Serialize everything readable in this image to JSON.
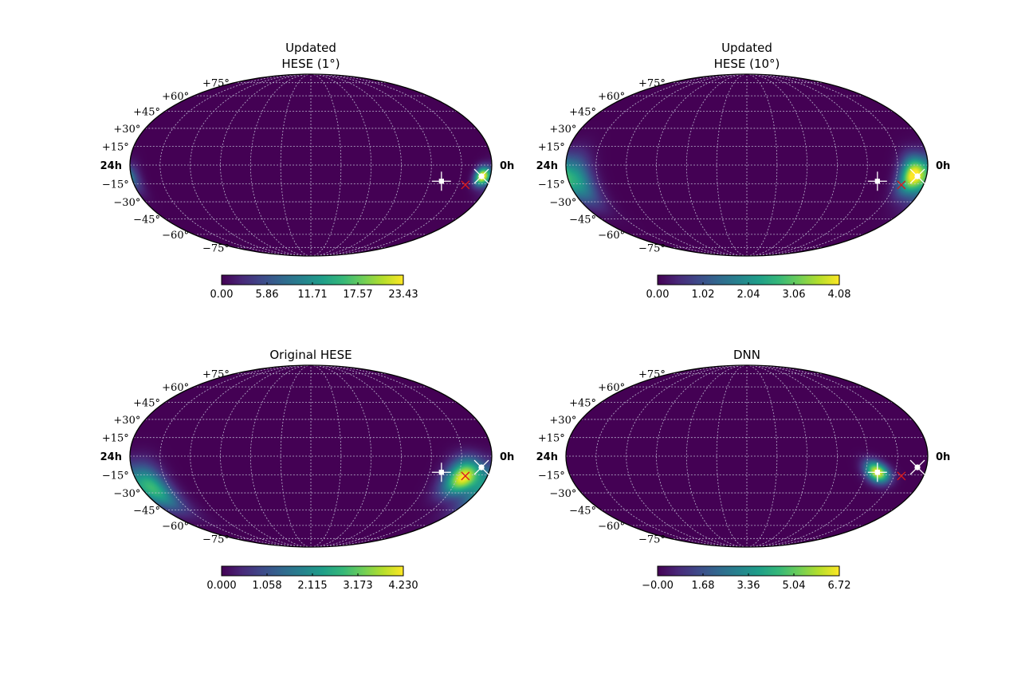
{
  "colors": {
    "background_map": "#440154",
    "grid": "#c8c8dc",
    "best_fit_marker": "#ffffff",
    "true_source_marker": "#d7191c",
    "viridis": [
      "#440154",
      "#482878",
      "#3e4989",
      "#31688e",
      "#26828e",
      "#1f9e89",
      "#35b779",
      "#6ece58",
      "#b5de2b",
      "#fde725"
    ]
  },
  "chart_data": [
    {
      "type": "heatmap",
      "projection": "mollweide",
      "title_lines": [
        "Updated",
        "HESE (1°)"
      ],
      "dec_labels": [
        "+75°",
        "+60°",
        "+45°",
        "+30°",
        "+15°",
        "−15°",
        "−30°",
        "−45°",
        "−60°",
        "−75°"
      ],
      "ra_left_label": "24h",
      "ra_right_label": "0h",
      "colorbar": {
        "min": 0.0,
        "max": 23.43,
        "ticks": [
          "0.00",
          "5.86",
          "11.71",
          "17.57",
          "23.43"
        ]
      },
      "blobs": [
        {
          "ra_h": 0.55,
          "dec": -9,
          "sigma_ra_deg": 5,
          "sigma_dec_deg": 5,
          "peak": 23.43
        },
        {
          "ra_h": 23.9,
          "dec": -11,
          "sigma_ra_deg": 6,
          "sigma_dec_deg": 9,
          "peak": 5.0
        }
      ],
      "markers": {
        "cross_star": [
          {
            "ra_h": 3.2,
            "dec": -13
          }
        ],
        "star": [
          {
            "ra_h": 0.6,
            "dec": -9
          }
        ],
        "x_red": [
          {
            "ra_h": 1.5,
            "dec": -16
          }
        ]
      }
    },
    {
      "type": "heatmap",
      "projection": "mollweide",
      "title_lines": [
        "Updated",
        "HESE (10°)"
      ],
      "dec_labels": [
        "+75°",
        "+60°",
        "+45°",
        "+30°",
        "+15°",
        "−15°",
        "−30°",
        "−45°",
        "−60°",
        "−75°"
      ],
      "ra_left_label": "24h",
      "ra_right_label": "0h",
      "colorbar": {
        "min": 0.0,
        "max": 4.08,
        "ticks": [
          "0.00",
          "1.02",
          "2.04",
          "3.06",
          "4.08"
        ]
      },
      "blobs": [
        {
          "ra_h": 0.9,
          "dec": -8,
          "sigma_ra_deg": 9,
          "sigma_dec_deg": 10,
          "peak": 4.08
        },
        {
          "ra_h": 23.4,
          "dec": -12,
          "sigma_ra_deg": 11,
          "sigma_dec_deg": 14,
          "peak": 2.2
        }
      ],
      "markers": {
        "cross_star": [
          {
            "ra_h": 3.2,
            "dec": -13
          }
        ],
        "star": [
          {
            "ra_h": 0.6,
            "dec": -9
          }
        ],
        "x_red": [
          {
            "ra_h": 1.5,
            "dec": -16
          }
        ]
      }
    },
    {
      "type": "heatmap",
      "projection": "mollweide",
      "title_lines": [
        "Original HESE"
      ],
      "dec_labels": [
        "+75°",
        "+60°",
        "+45°",
        "+30°",
        "+15°",
        "−15°",
        "−30°",
        "−45°",
        "−60°",
        "−75°"
      ],
      "ra_left_label": "24h",
      "ra_right_label": "0h",
      "colorbar": {
        "min": 0.0,
        "max": 4.23,
        "ticks": [
          "0.000",
          "1.058",
          "2.115",
          "3.173",
          "4.230"
        ]
      },
      "blobs": [
        {
          "ra_h": 1.6,
          "dec": -17,
          "sigma_ra_deg": 12,
          "sigma_dec_deg": 10,
          "peak": 4.23
        },
        {
          "ra_h": 23.2,
          "dec": -26,
          "sigma_ra_deg": 12,
          "sigma_dec_deg": 13,
          "peak": 2.8
        }
      ],
      "markers": {
        "cross_star": [
          {
            "ra_h": 3.2,
            "dec": -13
          }
        ],
        "star": [
          {
            "ra_h": 0.6,
            "dec": -9
          }
        ],
        "x_red": [
          {
            "ra_h": 1.5,
            "dec": -16
          }
        ]
      }
    },
    {
      "type": "heatmap",
      "projection": "mollweide",
      "title_lines": [
        "DNN"
      ],
      "dec_labels": [
        "+75°",
        "+60°",
        "+45°",
        "+30°",
        "+15°",
        "−15°",
        "−30°",
        "−45°",
        "−60°",
        "−75°"
      ],
      "ra_left_label": "24h",
      "ra_right_label": "0h",
      "colorbar": {
        "min": 0.0,
        "max": 6.72,
        "ticks": [
          "−0.00",
          "1.68",
          "3.36",
          "5.04",
          "6.72"
        ]
      },
      "blobs": [
        {
          "ra_h": 3.2,
          "dec": -13,
          "sigma_ra_deg": 9,
          "sigma_dec_deg": 6,
          "peak": 6.72,
          "rho": 0.5
        }
      ],
      "markers": {
        "cross_star": [
          {
            "ra_h": 3.2,
            "dec": -13
          }
        ],
        "star": [
          {
            "ra_h": 0.6,
            "dec": -9
          }
        ],
        "x_red": [
          {
            "ra_h": 1.5,
            "dec": -16
          }
        ]
      }
    }
  ]
}
